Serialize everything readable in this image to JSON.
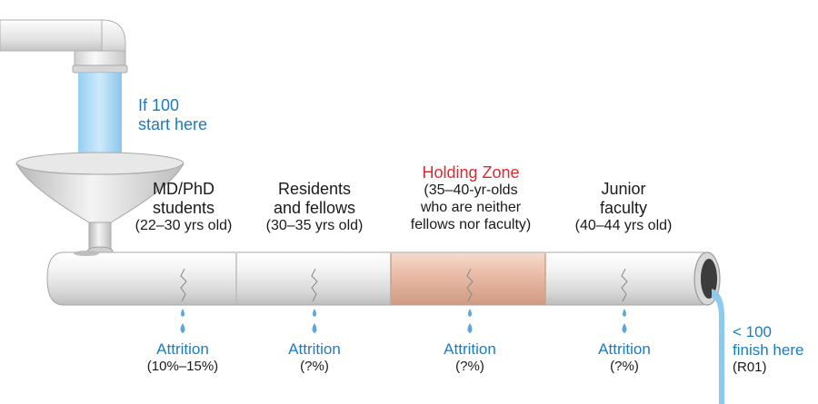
{
  "start": {
    "line1": "If 100",
    "line2": "start here"
  },
  "finish": {
    "line1": "< 100",
    "line2": "finish here",
    "note": "(R01)"
  },
  "stages": [
    {
      "title1": "MD/PhD",
      "title2": "students",
      "age": "(22–30 yrs old)",
      "attrition_label": "Attrition",
      "attrition_rate": "(10%–15%)"
    },
    {
      "title1": "Residents",
      "title2": "and fellows",
      "age": "(30–35 yrs old)",
      "attrition_label": "Attrition",
      "attrition_rate": "(?%)"
    },
    {
      "title1": "Holding Zone",
      "sub1": "(35–40-yr-olds",
      "sub2": "who are neither",
      "sub3": "fellows nor faculty)",
      "attrition_label": "Attrition",
      "attrition_rate": "(?%)"
    },
    {
      "title1": "Junior",
      "title2": "faculty",
      "age": "(40–44 yrs old)",
      "attrition_label": "Attrition",
      "attrition_rate": "(?%)"
    }
  ],
  "colors": {
    "water": "#6fb8e6",
    "label_blue": "#1b7bc4",
    "holding_zone_red": "#e3252c",
    "holding_zone_pipe": "#e9b9a4",
    "pipe": "#e6e6e6"
  }
}
